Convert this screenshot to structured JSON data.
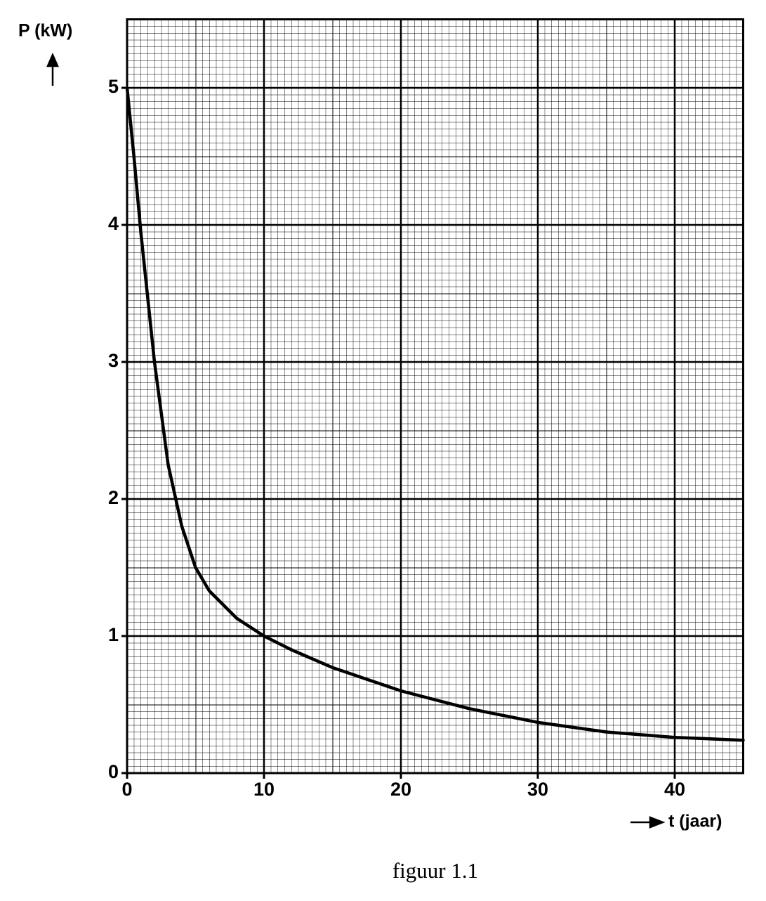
{
  "chart_data": {
    "type": "line",
    "ylabel": "P (kW)",
    "xlabel": "t (jaar)",
    "caption": "figuur 1.1",
    "x": [
      0,
      0.5,
      1,
      2,
      3,
      4,
      5,
      6,
      8,
      10,
      12,
      15,
      20,
      25,
      30,
      35,
      40,
      45
    ],
    "values": [
      5.0,
      4.5,
      3.95,
      3.0,
      2.25,
      1.8,
      1.5,
      1.33,
      1.13,
      1.0,
      0.9,
      0.77,
      0.6,
      0.47,
      0.37,
      0.3,
      0.26,
      0.24
    ],
    "color": "#000000",
    "xlim": [
      0,
      45
    ],
    "ylim": [
      0,
      5.5
    ],
    "xticks": [
      0,
      10,
      20,
      30,
      40
    ],
    "yticks": [
      0,
      1,
      2,
      3,
      4,
      5
    ],
    "grid": true
  }
}
